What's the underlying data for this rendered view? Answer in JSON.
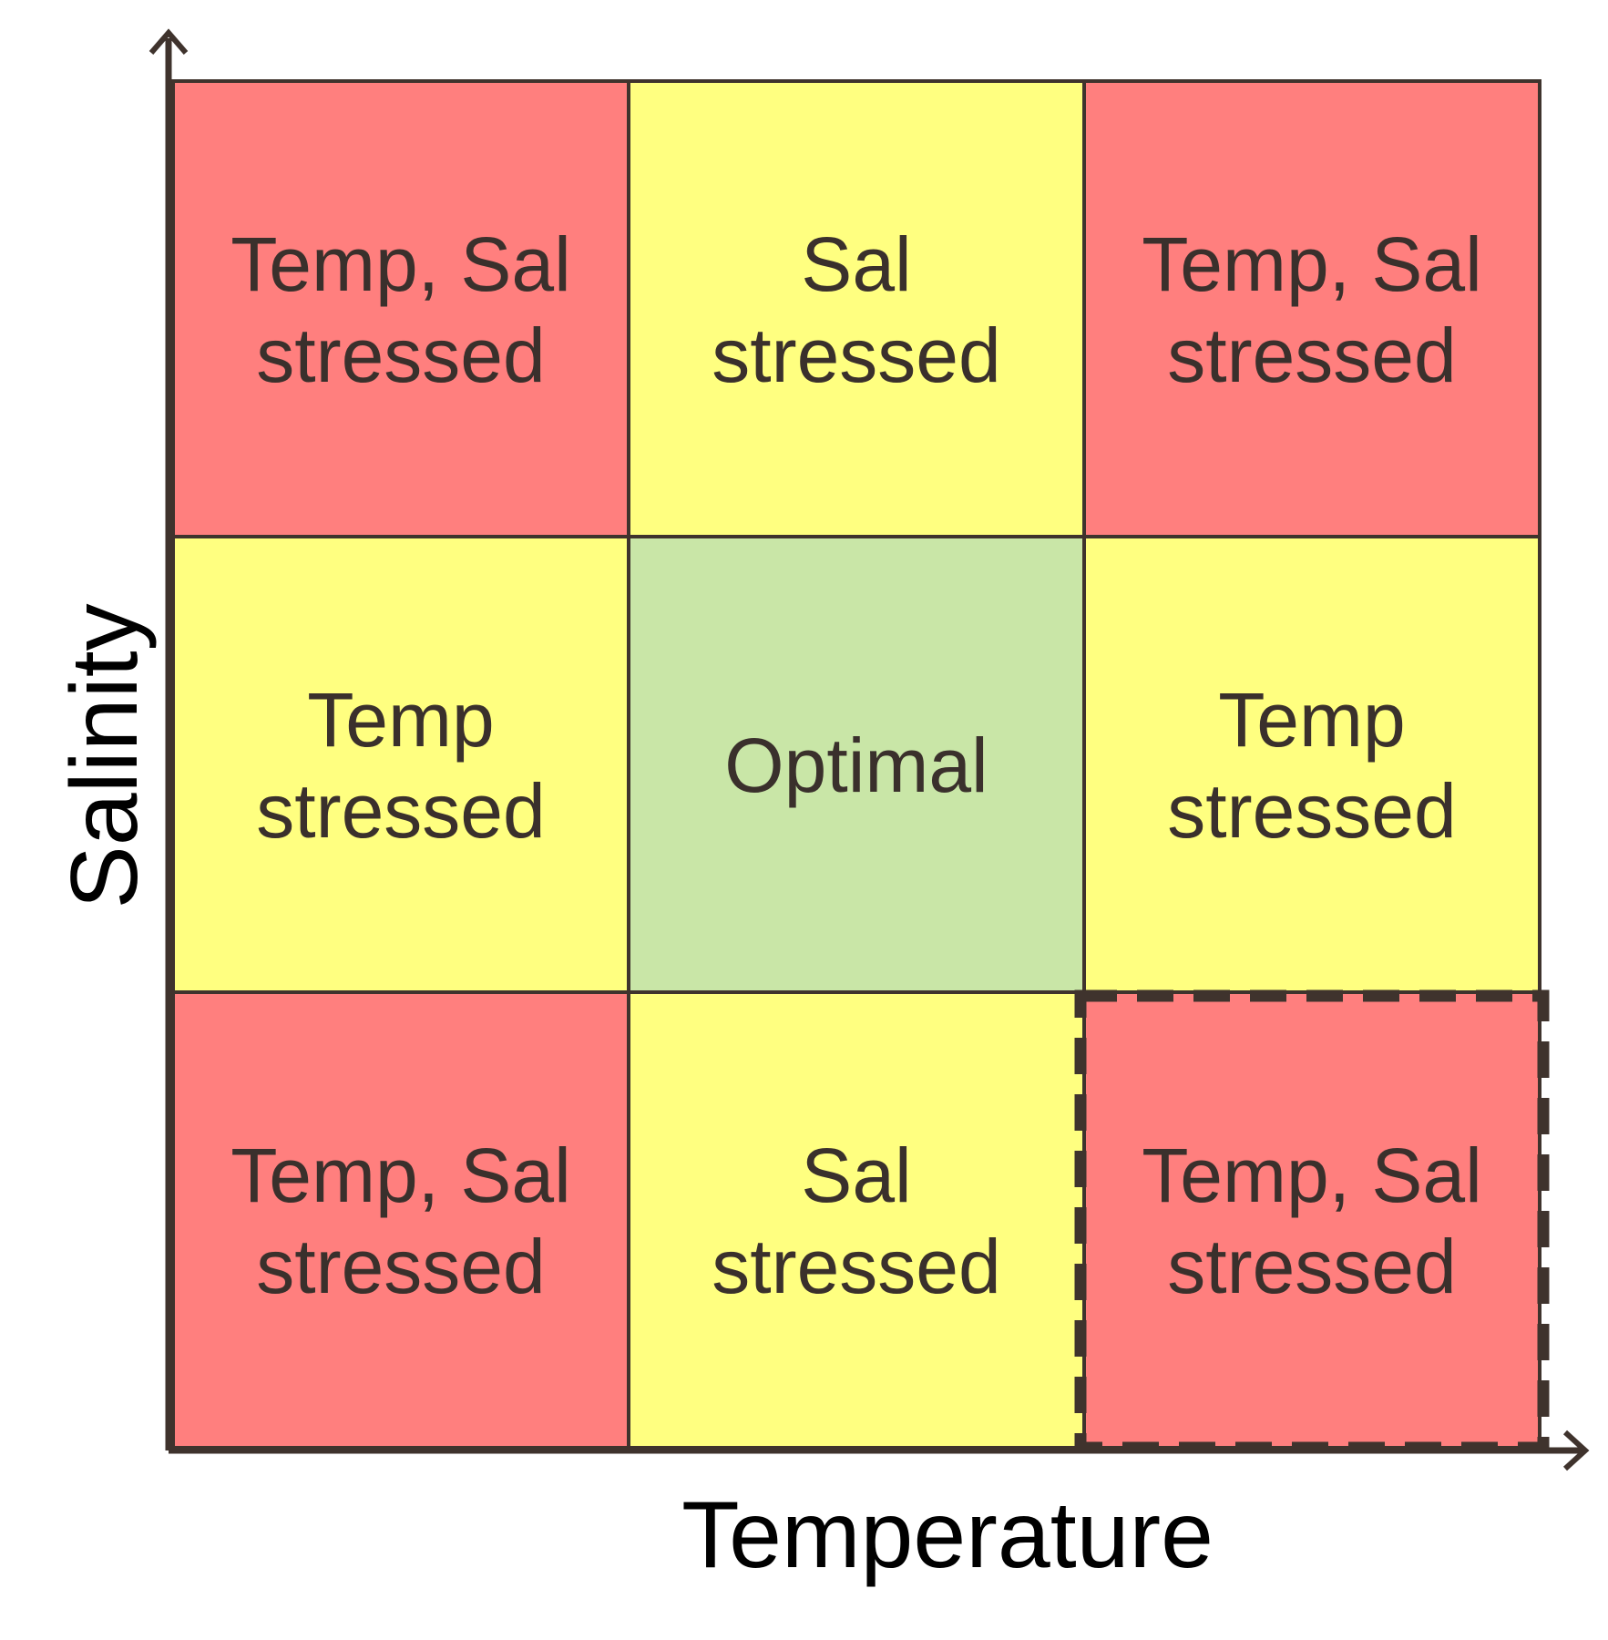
{
  "axes": {
    "x_label": "Temperature",
    "y_label": "Salinity"
  },
  "colors": {
    "both_stressed": "#ff7f7e",
    "single_stressed": "#ffff80",
    "optimal": "#c9e6a7",
    "border": "#3f332d",
    "text": "#3a302c"
  },
  "grid": {
    "rows": 3,
    "cols": 3,
    "highlighted_cell": {
      "row": 2,
      "col": 2,
      "style": "dashed"
    },
    "cells": [
      {
        "row": 0,
        "col": 0,
        "category": "both_stressed",
        "lines": [
          "Temp, Sal",
          "stressed"
        ]
      },
      {
        "row": 0,
        "col": 1,
        "category": "single_stressed",
        "lines": [
          "Sal",
          "stressed"
        ]
      },
      {
        "row": 0,
        "col": 2,
        "category": "both_stressed",
        "lines": [
          "Temp, Sal",
          "stressed"
        ]
      },
      {
        "row": 1,
        "col": 0,
        "category": "single_stressed",
        "lines": [
          "Temp",
          "stressed"
        ]
      },
      {
        "row": 1,
        "col": 1,
        "category": "optimal",
        "lines": [
          "Optimal"
        ]
      },
      {
        "row": 1,
        "col": 2,
        "category": "single_stressed",
        "lines": [
          "Temp",
          "stressed"
        ]
      },
      {
        "row": 2,
        "col": 0,
        "category": "both_stressed",
        "lines": [
          "Temp, Sal",
          "stressed"
        ]
      },
      {
        "row": 2,
        "col": 1,
        "category": "single_stressed",
        "lines": [
          "Sal",
          "stressed"
        ]
      },
      {
        "row": 2,
        "col": 2,
        "category": "both_stressed",
        "lines": [
          "Temp, Sal",
          "stressed"
        ]
      }
    ]
  }
}
